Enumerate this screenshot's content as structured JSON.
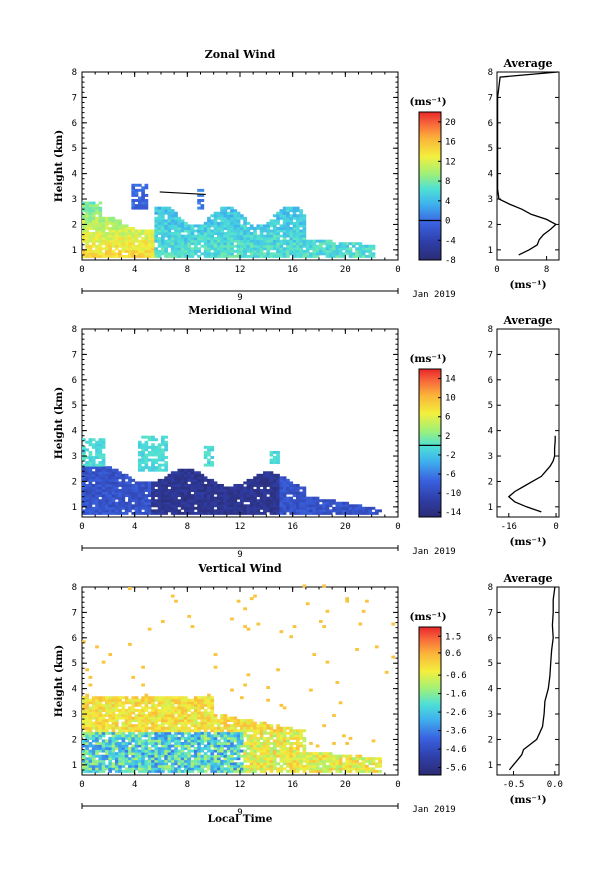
{
  "xaxis_label": "Local Time",
  "date_label": "Jan 2019",
  "day_label": "9",
  "avg_unit": "(ms⁻¹)",
  "chart_data": [
    {
      "type": "heatmap",
      "title": "Zonal Wind",
      "ylabel": "Height (km)",
      "xlim": [
        0,
        24
      ],
      "ylim": [
        0.6,
        8
      ],
      "x_ticks": [
        "0",
        "4",
        "8",
        "12",
        "16",
        "20",
        "0"
      ],
      "y_ticks": [
        "1",
        "2",
        "3",
        "4",
        "5",
        "6",
        "7",
        "8"
      ],
      "colorbar": {
        "unit": "(ms⁻¹)",
        "range": [
          -8,
          22
        ],
        "ticks": [
          "20",
          "16",
          "12",
          "8",
          "4",
          "0",
          "-4",
          "-8"
        ],
        "zero_line": 0
      },
      "average": {
        "title": "Average",
        "xlim": [
          0,
          10
        ],
        "x_ticks": [
          "0",
          "8"
        ],
        "profile": [
          [
            0.8,
            3.5
          ],
          [
            1.0,
            5.2
          ],
          [
            1.2,
            6.5
          ],
          [
            1.4,
            6.8
          ],
          [
            1.6,
            7.5
          ],
          [
            1.8,
            8.6
          ],
          [
            2.0,
            9.5
          ],
          [
            2.2,
            8.0
          ],
          [
            2.4,
            5.5
          ],
          [
            2.6,
            4.0
          ],
          [
            2.8,
            2.0
          ],
          [
            3.0,
            0.3
          ],
          [
            3.4,
            0.1
          ],
          [
            4.0,
            0.1
          ],
          [
            5.0,
            0.1
          ],
          [
            6.0,
            0.1
          ],
          [
            7.0,
            0.1
          ],
          [
            7.8,
            0.5
          ],
          [
            8.0,
            9.8
          ]
        ]
      }
    },
    {
      "type": "heatmap",
      "title": "Meridional Wind",
      "ylabel": "Height (km)",
      "xlim": [
        0,
        24
      ],
      "ylim": [
        0.6,
        8
      ],
      "x_ticks": [
        "0",
        "4",
        "8",
        "12",
        "16",
        "20",
        "0"
      ],
      "y_ticks": [
        "1",
        "2",
        "3",
        "4",
        "5",
        "6",
        "7",
        "8"
      ],
      "colorbar": {
        "unit": "(ms⁻¹)",
        "range": [
          -15,
          16
        ],
        "ticks": [
          "14",
          "10",
          "6",
          "2",
          "-2",
          "-6",
          "-10",
          "-14"
        ],
        "zero_line": 0
      },
      "average": {
        "title": "Average",
        "xlim": [
          -20,
          1
        ],
        "x_ticks": [
          "-16",
          "0"
        ],
        "profile": [
          [
            0.8,
            -5
          ],
          [
            1.0,
            -10
          ],
          [
            1.2,
            -14
          ],
          [
            1.4,
            -16
          ],
          [
            1.6,
            -14
          ],
          [
            1.8,
            -11
          ],
          [
            2.0,
            -8
          ],
          [
            2.2,
            -5
          ],
          [
            2.4,
            -3.5
          ],
          [
            2.6,
            -2
          ],
          [
            2.8,
            -1
          ],
          [
            3.0,
            -0.5
          ],
          [
            3.3,
            -0.5
          ],
          [
            3.6,
            -0.3
          ],
          [
            3.8,
            -0.3
          ]
        ]
      }
    },
    {
      "type": "heatmap",
      "title": "Vertical Wind",
      "ylabel": "Height (km)",
      "xlim": [
        0,
        24
      ],
      "ylim": [
        0.6,
        8
      ],
      "x_ticks": [
        "0",
        "4",
        "8",
        "12",
        "16",
        "20",
        "0"
      ],
      "y_ticks": [
        "1",
        "2",
        "3",
        "4",
        "5",
        "6",
        "7",
        "8"
      ],
      "colorbar": {
        "unit": "(ms⁻¹)",
        "range": [
          -6,
          2
        ],
        "ticks": [
          "1.5",
          "0.6",
          "-0.6",
          "-1.6",
          "-2.6",
          "-3.6",
          "-4.6",
          "-5.6"
        ],
        "zero_line": null
      },
      "average": {
        "title": "Average",
        "xlim": [
          -0.7,
          0.05
        ],
        "x_ticks": [
          "-0.5",
          "0.0"
        ],
        "profile": [
          [
            0.8,
            -0.55
          ],
          [
            1.0,
            -0.5
          ],
          [
            1.2,
            -0.45
          ],
          [
            1.4,
            -0.4
          ],
          [
            1.6,
            -0.38
          ],
          [
            1.8,
            -0.3
          ],
          [
            2.0,
            -0.22
          ],
          [
            2.5,
            -0.15
          ],
          [
            3.0,
            -0.13
          ],
          [
            3.5,
            -0.12
          ],
          [
            4.0,
            -0.08
          ],
          [
            4.5,
            -0.06
          ],
          [
            5.0,
            -0.05
          ],
          [
            5.5,
            -0.04
          ],
          [
            6.0,
            -0.02
          ],
          [
            6.5,
            -0.03
          ],
          [
            7.0,
            -0.02
          ],
          [
            7.5,
            -0.02
          ],
          [
            8.0,
            0.0
          ]
        ]
      }
    }
  ]
}
